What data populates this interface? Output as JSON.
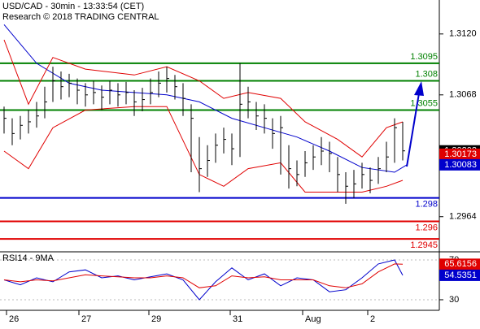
{
  "chart_data": [
    {
      "type": "ohlc",
      "title": "USD/CAD - 30min - 13:33:54 (CET)",
      "subtitle": "Research © 2018 TRADING CENTRAL",
      "x": [
        0,
        1,
        2,
        3,
        4,
        5,
        6,
        7,
        8,
        9,
        10,
        11,
        12,
        13,
        14,
        15,
        16,
        17,
        18,
        19,
        20,
        21,
        22,
        23,
        24,
        25,
        26,
        27,
        28,
        29,
        30,
        31,
        32,
        33,
        34,
        35,
        36,
        37,
        38,
        39,
        40,
        41,
        42,
        43,
        44,
        45,
        46,
        47,
        48,
        49
      ],
      "high": [
        1.3058,
        1.3048,
        1.305,
        1.3055,
        1.3062,
        1.3075,
        1.3092,
        1.3088,
        1.3086,
        1.3082,
        1.3078,
        1.308,
        1.3076,
        1.308,
        1.3078,
        1.3079,
        1.3072,
        1.3074,
        1.3082,
        1.3088,
        1.3092,
        1.3085,
        1.3078,
        1.306,
        1.3032,
        1.3025,
        1.3035,
        1.304,
        1.3035,
        1.3095,
        1.3075,
        1.3062,
        1.306,
        1.3048,
        1.305,
        1.3025,
        1.3012,
        1.302,
        1.3025,
        1.3032,
        1.3028,
        1.3015,
        1.3002,
        1.3004,
        1.301,
        1.3006,
        1.3015,
        1.3028,
        1.3048,
        1.3045
      ],
      "low": [
        1.3035,
        1.3025,
        1.303,
        1.3035,
        1.304,
        1.3048,
        1.3062,
        1.3064,
        1.3066,
        1.306,
        1.3058,
        1.306,
        1.3055,
        1.306,
        1.3058,
        1.306,
        1.305,
        1.3054,
        1.306,
        1.3066,
        1.307,
        1.3064,
        1.305,
        1.3002,
        1.2985,
        1.2998,
        1.301,
        1.3018,
        1.3008,
        1.3015,
        1.3048,
        1.3038,
        1.3035,
        1.3022,
        1.3,
        1.2988,
        1.299,
        1.2998,
        1.3004,
        1.3008,
        1.3002,
        1.2985,
        1.2975,
        1.298,
        1.2988,
        1.2984,
        1.2992,
        1.3002,
        1.301,
        1.3012
      ],
      "close": [
        1.3048,
        1.3035,
        1.3042,
        1.3045,
        1.305,
        1.3062,
        1.308,
        1.3075,
        1.3078,
        1.3072,
        1.3068,
        1.307,
        1.3066,
        1.3072,
        1.3068,
        1.307,
        1.3062,
        1.3064,
        1.307,
        1.3078,
        1.3082,
        1.3075,
        1.3065,
        1.3048,
        1.3005,
        1.3012,
        1.3025,
        1.303,
        1.3022,
        1.306,
        1.3062,
        1.305,
        1.3048,
        1.3035,
        1.304,
        1.3005,
        1.3,
        1.301,
        1.3015,
        1.302,
        1.3018,
        1.3,
        1.299,
        1.2992,
        1.3,
        1.2995,
        1.3005,
        1.3015,
        1.304,
        1.30202
      ],
      "color": "#000000",
      "lines": [
        {
          "color": "#0000cc",
          "x": [
            0,
            4,
            8,
            12,
            16,
            20,
            24,
            28,
            32,
            36,
            40,
            44,
            48,
            49.5
          ],
          "values": [
            1.3128,
            1.3095,
            1.3078,
            1.3072,
            1.307,
            1.3068,
            1.3062,
            1.3048,
            1.304,
            1.3032,
            1.302,
            1.3006,
            1.3002,
            1.30083
          ]
        },
        {
          "color": "#e00000",
          "x": [
            0,
            3,
            6,
            10,
            16,
            20,
            24,
            27,
            30,
            34,
            37,
            41,
            44,
            47,
            49
          ],
          "values": [
            1.3115,
            1.306,
            1.31,
            1.309,
            1.3085,
            1.3092,
            1.308,
            1.3065,
            1.307,
            1.3065,
            1.3045,
            1.303,
            1.3015,
            1.304,
            1.3045
          ]
        },
        {
          "color": "#e00000",
          "x": [
            0,
            3,
            6,
            10,
            16,
            20,
            24,
            27,
            30,
            34,
            37,
            41,
            44,
            47,
            49
          ],
          "values": [
            1.302,
            1.3005,
            1.304,
            1.3055,
            1.3058,
            1.3058,
            1.3,
            1.299,
            1.3005,
            1.301,
            1.2985,
            1.2985,
            1.2985,
            1.299,
            1.2995
          ]
        }
      ],
      "levels": [
        {
          "value": 1.3095,
          "color": "#008000"
        },
        {
          "value": 1.308,
          "color": "#008000"
        },
        {
          "value": 1.3055,
          "color": "#008000"
        },
        {
          "value": 1.298,
          "color": "#0000cc"
        },
        {
          "value": 1.296,
          "color": "#e00000"
        },
        {
          "value": 1.2945,
          "color": "#e00000"
        }
      ],
      "price_markers": [
        {
          "value": 1.30173,
          "color": "#e00000"
        }
      ],
      "xlim": [
        -0.5,
        53.5
      ],
      "ylim": [
        1.2934,
        1.3149
      ],
      "yticks": [
        {
          "value": 1.312,
          "label": "1.3120"
        },
        1.3068,
        1.2964
      ],
      "xticks": [
        {
          "value": 0.3,
          "label": "26"
        },
        {
          "value": 9.2,
          "label": "27"
        },
        {
          "value": 17.8,
          "label": "29"
        },
        {
          "value": 27.8,
          "label": "31"
        },
        {
          "value": 36.7,
          "label": "Aug"
        },
        {
          "value": 44.7,
          "label": "2"
        }
      ]
    },
    {
      "type": "line",
      "title": "RSI14 - 9MA",
      "x": [
        0,
        2,
        4,
        6,
        8,
        10,
        12,
        14,
        16,
        18,
        20,
        22,
        24,
        26,
        28,
        30,
        32,
        34,
        36,
        38,
        40,
        42,
        44,
        46,
        48,
        49
      ],
      "series": [
        {
          "color": "#0000cc",
          "values": [
            50,
            45,
            52,
            48,
            58,
            60,
            52,
            54,
            50,
            53,
            56,
            50,
            30,
            48,
            62,
            50,
            56,
            44,
            52,
            50,
            38,
            40,
            52,
            66,
            70,
            54.5351
          ]
        },
        {
          "color": "#e00000",
          "values": [
            50,
            48,
            50,
            49,
            52,
            55,
            54,
            53,
            52,
            52,
            54,
            52,
            42,
            44,
            54,
            52,
            53,
            50,
            50,
            50,
            44,
            42,
            46,
            58,
            66,
            65.6156
          ]
        }
      ],
      "xlim": [
        -0.5,
        53.5
      ],
      "ylim": [
        21,
        76.5
      ],
      "yticks": [
        30,
        70
      ]
    }
  ]
}
